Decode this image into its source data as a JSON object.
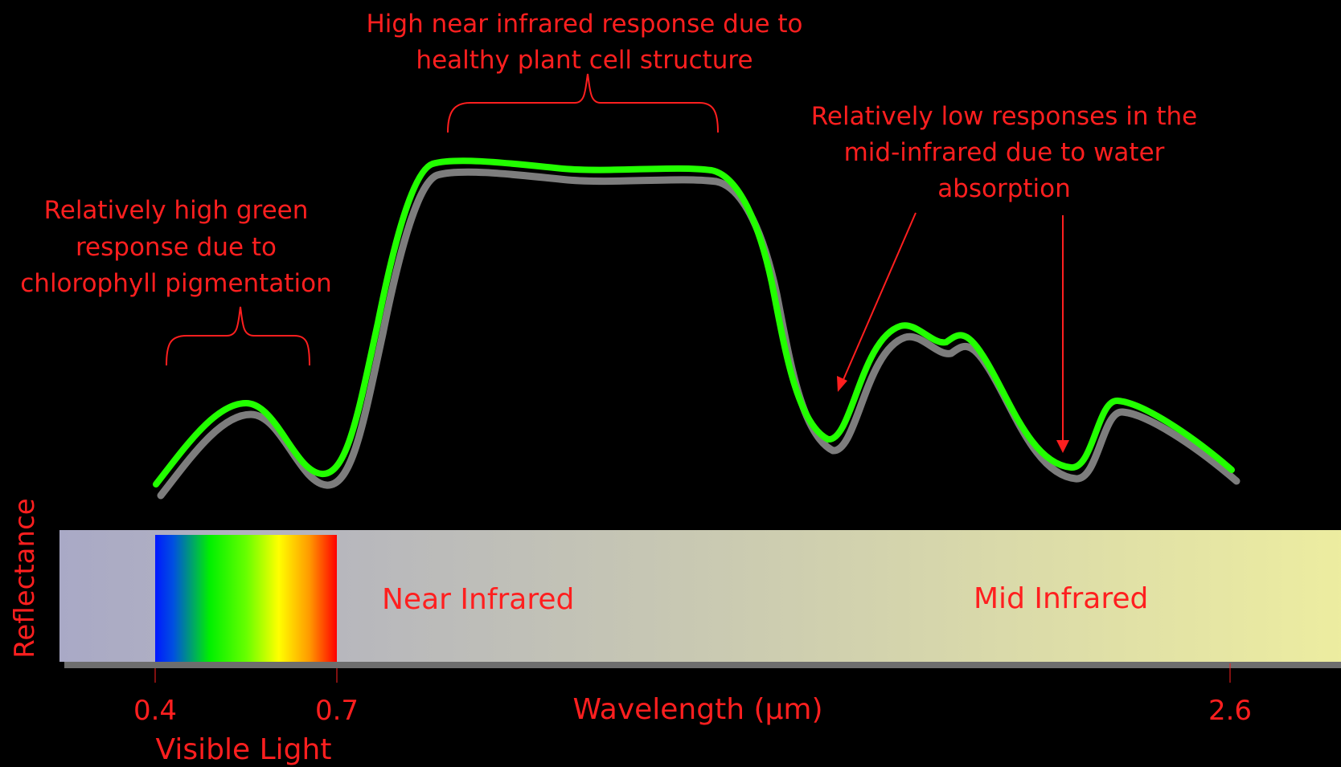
{
  "colors": {
    "background": "#000000",
    "text": "#ff1f1f",
    "curve": "#22ff00",
    "curve_shadow": "#808080",
    "band_left": "#a8a8c4",
    "band_right": "#ecec9c"
  },
  "annotations": {
    "nir_line1": "High near infrared response due to",
    "nir_line2": "healthy plant cell structure",
    "green_line1": "Relatively high green",
    "green_line2": "response due to",
    "green_line3": "chlorophyll pigmentation",
    "mir_line1": "Relatively low responses in the",
    "mir_line2": "mid-infrared due to water",
    "mir_line3": "absorption"
  },
  "band": {
    "near_infrared": "Near Infrared",
    "mid_infrared": "Mid Infrared"
  },
  "axis": {
    "ylabel": "Reflectance",
    "xlabel": "Wavelength (µm)",
    "ticks": [
      "0.4",
      "0.7",
      "2.6"
    ],
    "visible_label": "Visible Light"
  }
}
